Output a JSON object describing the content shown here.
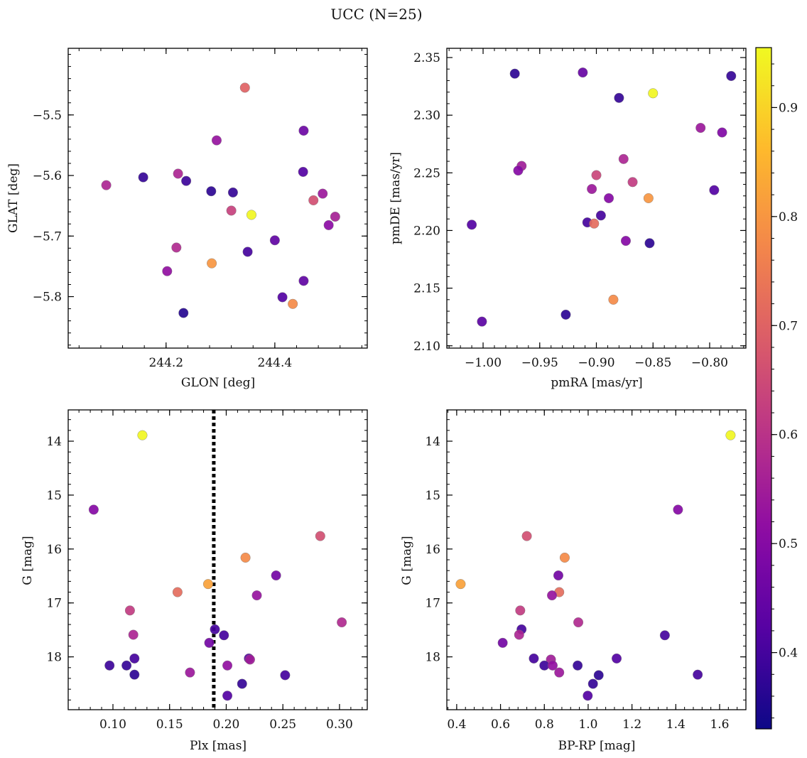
{
  "figure": {
    "title": "UCC (N=25)"
  },
  "colorbar": {
    "min": 0.33,
    "max": 0.955,
    "ticks": [
      0.4,
      0.5,
      0.6,
      0.7,
      0.8,
      0.9
    ],
    "tick_labels": [
      "0.4",
      "0.5",
      "0.6",
      "0.7",
      "0.8",
      "0.9"
    ],
    "colormap": "plasma"
  },
  "chart_data": [
    {
      "type": "scatter",
      "title": "",
      "xlabel": "GLON [deg]",
      "ylabel": "GLAT [deg]",
      "xlim": [
        244.02,
        244.57
      ],
      "ylim": [
        -5.885,
        -5.39
      ],
      "xticks": [
        244.2,
        244.4
      ],
      "xtick_labels": [
        "244.2",
        "244.4"
      ],
      "yticks": [
        -5.5,
        -5.6,
        -5.7,
        -5.8
      ],
      "ytick_labels": [
        "−5.5",
        "−5.6",
        "−5.7",
        "−5.8"
      ],
      "vline": null,
      "points": [
        {
          "x": 244.345,
          "y": -5.455,
          "c": 0.7
        },
        {
          "x": 244.453,
          "y": -5.526,
          "c": 0.46
        },
        {
          "x": 244.293,
          "y": -5.542,
          "c": 0.53
        },
        {
          "x": 244.452,
          "y": -5.594,
          "c": 0.42
        },
        {
          "x": 244.222,
          "y": -5.597,
          "c": 0.57
        },
        {
          "x": 244.158,
          "y": -5.603,
          "c": 0.38
        },
        {
          "x": 244.237,
          "y": -5.609,
          "c": 0.39
        },
        {
          "x": 244.09,
          "y": -5.616,
          "c": 0.57
        },
        {
          "x": 244.283,
          "y": -5.626,
          "c": 0.37
        },
        {
          "x": 244.323,
          "y": -5.628,
          "c": 0.38
        },
        {
          "x": 244.488,
          "y": -5.63,
          "c": 0.54
        },
        {
          "x": 244.471,
          "y": -5.641,
          "c": 0.66
        },
        {
          "x": 244.32,
          "y": -5.658,
          "c": 0.63
        },
        {
          "x": 244.357,
          "y": -5.665,
          "c": 0.95
        },
        {
          "x": 244.511,
          "y": -5.668,
          "c": 0.56
        },
        {
          "x": 244.499,
          "y": -5.682,
          "c": 0.51
        },
        {
          "x": 244.4,
          "y": -5.707,
          "c": 0.44
        },
        {
          "x": 244.219,
          "y": -5.719,
          "c": 0.58
        },
        {
          "x": 244.35,
          "y": -5.726,
          "c": 0.4
        },
        {
          "x": 244.284,
          "y": -5.745,
          "c": 0.8
        },
        {
          "x": 244.202,
          "y": -5.758,
          "c": 0.52
        },
        {
          "x": 244.453,
          "y": -5.774,
          "c": 0.44
        },
        {
          "x": 244.414,
          "y": -5.801,
          "c": 0.42
        },
        {
          "x": 244.433,
          "y": -5.812,
          "c": 0.78
        },
        {
          "x": 244.232,
          "y": -5.827,
          "c": 0.36
        }
      ]
    },
    {
      "type": "scatter",
      "title": "",
      "xlabel": "pmRA [mas/yr]",
      "ylabel": "pmDE [mas/yr]",
      "xlim": [
        -1.032,
        -0.768
      ],
      "ylim": [
        2.098,
        2.358
      ],
      "xticks": [
        -1.0,
        -0.95,
        -0.9,
        -0.85,
        -0.8
      ],
      "xtick_labels": [
        "−1.00",
        "−0.95",
        "−0.90",
        "−0.85",
        "−0.80"
      ],
      "yticks": [
        2.1,
        2.15,
        2.2,
        2.25,
        2.3,
        2.35
      ],
      "ytick_labels": [
        "2.10",
        "2.15",
        "2.20",
        "2.25",
        "2.30",
        "2.35"
      ],
      "vline": null,
      "points": [
        {
          "x": -0.972,
          "y": 2.336,
          "c": 0.37
        },
        {
          "x": -0.912,
          "y": 2.337,
          "c": 0.45
        },
        {
          "x": -0.781,
          "y": 2.334,
          "c": 0.38
        },
        {
          "x": -0.85,
          "y": 2.319,
          "c": 0.95
        },
        {
          "x": -0.88,
          "y": 2.315,
          "c": 0.38
        },
        {
          "x": -0.808,
          "y": 2.289,
          "c": 0.54
        },
        {
          "x": -0.789,
          "y": 2.285,
          "c": 0.49
        },
        {
          "x": -0.876,
          "y": 2.262,
          "c": 0.57
        },
        {
          "x": -0.966,
          "y": 2.256,
          "c": 0.55
        },
        {
          "x": -0.969,
          "y": 2.252,
          "c": 0.5
        },
        {
          "x": -0.9,
          "y": 2.248,
          "c": 0.64
        },
        {
          "x": -0.868,
          "y": 2.242,
          "c": 0.62
        },
        {
          "x": -0.904,
          "y": 2.236,
          "c": 0.54
        },
        {
          "x": -0.796,
          "y": 2.235,
          "c": 0.42
        },
        {
          "x": -0.889,
          "y": 2.228,
          "c": 0.5
        },
        {
          "x": -0.854,
          "y": 2.228,
          "c": 0.8
        },
        {
          "x": -0.896,
          "y": 2.213,
          "c": 0.4
        },
        {
          "x": -1.01,
          "y": 2.205,
          "c": 0.42
        },
        {
          "x": -0.908,
          "y": 2.207,
          "c": 0.4
        },
        {
          "x": -0.902,
          "y": 2.206,
          "c": 0.72
        },
        {
          "x": -0.874,
          "y": 2.191,
          "c": 0.5
        },
        {
          "x": -0.853,
          "y": 2.189,
          "c": 0.37
        },
        {
          "x": -0.885,
          "y": 2.14,
          "c": 0.78
        },
        {
          "x": -0.927,
          "y": 2.127,
          "c": 0.37
        },
        {
          "x": -1.001,
          "y": 2.121,
          "c": 0.43
        }
      ]
    },
    {
      "type": "scatter",
      "title": "",
      "xlabel": "Plx [mas]",
      "ylabel": "G [mag]",
      "xlim": [
        0.0605,
        0.3245
      ],
      "ylim": [
        18.98,
        13.42
      ],
      "xticks": [
        0.1,
        0.15,
        0.2,
        0.25,
        0.3
      ],
      "xtick_labels": [
        "0.10",
        "0.15",
        "0.20",
        "0.25",
        "0.30"
      ],
      "yticks": [
        14,
        15,
        16,
        17,
        18
      ],
      "ytick_labels": [
        "14",
        "15",
        "16",
        "17",
        "18"
      ],
      "vline": 0.189,
      "points": [
        {
          "x": 0.126,
          "y": 13.89,
          "c": 0.95
        },
        {
          "x": 0.083,
          "y": 15.27,
          "c": 0.5
        },
        {
          "x": 0.283,
          "y": 15.76,
          "c": 0.66
        },
        {
          "x": 0.217,
          "y": 16.16,
          "c": 0.78
        },
        {
          "x": 0.244,
          "y": 16.49,
          "c": 0.47
        },
        {
          "x": 0.184,
          "y": 16.65,
          "c": 0.82
        },
        {
          "x": 0.157,
          "y": 16.8,
          "c": 0.72
        },
        {
          "x": 0.227,
          "y": 16.86,
          "c": 0.53
        },
        {
          "x": 0.115,
          "y": 17.14,
          "c": 0.62
        },
        {
          "x": 0.302,
          "y": 17.36,
          "c": 0.58
        },
        {
          "x": 0.19,
          "y": 17.49,
          "c": 0.4
        },
        {
          "x": 0.198,
          "y": 17.6,
          "c": 0.4
        },
        {
          "x": 0.118,
          "y": 17.59,
          "c": 0.57
        },
        {
          "x": 0.185,
          "y": 17.74,
          "c": 0.47
        },
        {
          "x": 0.119,
          "y": 18.03,
          "c": 0.4
        },
        {
          "x": 0.22,
          "y": 18.03,
          "c": 0.42
        },
        {
          "x": 0.221,
          "y": 18.05,
          "c": 0.55
        },
        {
          "x": 0.097,
          "y": 18.16,
          "c": 0.39
        },
        {
          "x": 0.112,
          "y": 18.16,
          "c": 0.38
        },
        {
          "x": 0.201,
          "y": 18.16,
          "c": 0.52
        },
        {
          "x": 0.168,
          "y": 18.29,
          "c": 0.54
        },
        {
          "x": 0.119,
          "y": 18.33,
          "c": 0.37
        },
        {
          "x": 0.252,
          "y": 18.34,
          "c": 0.4
        },
        {
          "x": 0.214,
          "y": 18.5,
          "c": 0.38
        },
        {
          "x": 0.201,
          "y": 18.72,
          "c": 0.42
        }
      ]
    },
    {
      "type": "scatter",
      "title": "",
      "xlabel": "BP-RP [mag]",
      "ylabel": "G [mag]",
      "xlim": [
        0.355,
        1.72
      ],
      "ylim": [
        18.98,
        13.42
      ],
      "xticks": [
        0.4,
        0.6,
        0.8,
        1.0,
        1.2,
        1.4,
        1.6
      ],
      "xtick_labels": [
        "0.4",
        "0.6",
        "0.8",
        "1.0",
        "1.2",
        "1.4",
        "1.6"
      ],
      "yticks": [
        14,
        15,
        16,
        17,
        18
      ],
      "ytick_labels": [
        "14",
        "15",
        "16",
        "17",
        "18"
      ],
      "vline": null,
      "points": [
        {
          "x": 1.65,
          "y": 13.89,
          "c": 0.95
        },
        {
          "x": 1.41,
          "y": 15.27,
          "c": 0.5
        },
        {
          "x": 0.72,
          "y": 15.76,
          "c": 0.66
        },
        {
          "x": 0.893,
          "y": 16.16,
          "c": 0.78
        },
        {
          "x": 0.864,
          "y": 16.49,
          "c": 0.47
        },
        {
          "x": 0.418,
          "y": 16.65,
          "c": 0.82
        },
        {
          "x": 0.868,
          "y": 16.8,
          "c": 0.72
        },
        {
          "x": 0.835,
          "y": 16.86,
          "c": 0.53
        },
        {
          "x": 0.69,
          "y": 17.14,
          "c": 0.62
        },
        {
          "x": 0.955,
          "y": 17.36,
          "c": 0.58
        },
        {
          "x": 0.696,
          "y": 17.49,
          "c": 0.4
        },
        {
          "x": 1.35,
          "y": 17.6,
          "c": 0.4
        },
        {
          "x": 0.685,
          "y": 17.59,
          "c": 0.57
        },
        {
          "x": 0.61,
          "y": 17.74,
          "c": 0.47
        },
        {
          "x": 0.752,
          "y": 18.03,
          "c": 0.4
        },
        {
          "x": 1.13,
          "y": 18.03,
          "c": 0.42
        },
        {
          "x": 0.83,
          "y": 18.05,
          "c": 0.55
        },
        {
          "x": 0.8,
          "y": 18.16,
          "c": 0.39
        },
        {
          "x": 0.952,
          "y": 18.16,
          "c": 0.38
        },
        {
          "x": 0.838,
          "y": 18.16,
          "c": 0.52
        },
        {
          "x": 0.868,
          "y": 18.29,
          "c": 0.54
        },
        {
          "x": 1.048,
          "y": 18.34,
          "c": 0.37
        },
        {
          "x": 1.5,
          "y": 18.33,
          "c": 0.4
        },
        {
          "x": 1.022,
          "y": 18.5,
          "c": 0.38
        },
        {
          "x": 0.998,
          "y": 18.72,
          "c": 0.42
        }
      ]
    }
  ]
}
